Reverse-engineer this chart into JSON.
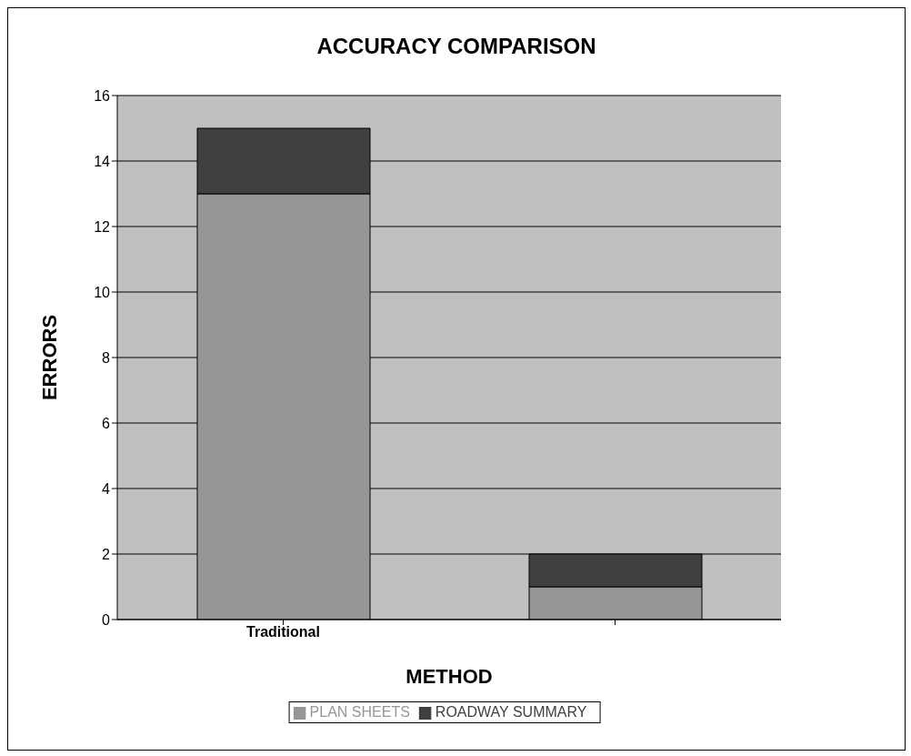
{
  "chart_data": {
    "type": "bar",
    "title": "ACCURACY COMPARISON",
    "xlabel": "METHOD",
    "ylabel": "ERRORS",
    "categories": [
      "Traditional",
      null
    ],
    "series": [
      {
        "name": "PLAN SHEETS",
        "color": "#969696",
        "values": [
          13,
          1
        ]
      },
      {
        "name": "ROADWAY SUMMARY",
        "color": "#404040",
        "values": [
          2,
          1
        ]
      }
    ],
    "stacked": true,
    "ylim": [
      0,
      16
    ],
    "yticks": [
      0,
      2,
      4,
      6,
      8,
      10,
      12,
      14,
      16
    ],
    "grid": "y",
    "legend": "bottom"
  }
}
